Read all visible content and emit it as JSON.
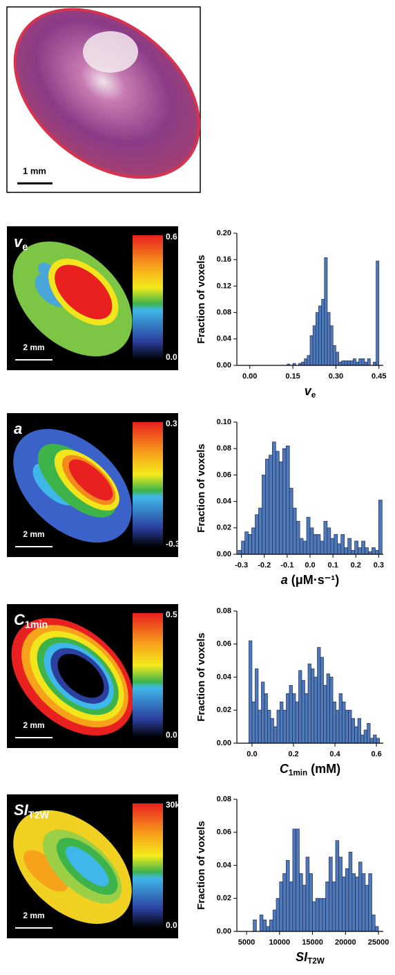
{
  "histology": {
    "scale_bar": "1 mm"
  },
  "maps": [
    {
      "label": {
        "italic": "v",
        "sub": "e"
      },
      "colorbar_max": "0.6",
      "colorbar_min": "0.0",
      "scale_bar": "2 mm"
    },
    {
      "label": {
        "italic": "a"
      },
      "colorbar_max": "0.3",
      "colorbar_min": "-0.3",
      "scale_bar": "2 mm"
    },
    {
      "label": {
        "italic": "C",
        "sub": "1min"
      },
      "colorbar_max": "0.5",
      "colorbar_min": "0.0",
      "scale_bar": "2 mm"
    },
    {
      "label": {
        "italic": "SI",
        "sub": "T2W"
      },
      "colorbar_max": "30k",
      "colorbar_min": "0.0",
      "scale_bar": "2 mm"
    }
  ],
  "chart_data": [
    {
      "type": "histogram",
      "y_label": "Fraction of voxels",
      "x_label": {
        "italic": "v",
        "sub": "e"
      },
      "color": "#4f79b7",
      "xlim": [
        -0.045,
        0.465
      ],
      "ylim": [
        0,
        0.2
      ],
      "xticks": [
        {
          "value": 0,
          "label": "0.00"
        },
        0.15,
        {
          "value": 0.3,
          "label": "0.30"
        },
        0.45
      ],
      "yticks": [
        {
          "value": 0,
          "label": "0.00"
        },
        0.04,
        0.08,
        0.12,
        0.16,
        {
          "value": 0.2,
          "label": "0.20"
        }
      ],
      "bins": [
        0.13,
        0.14,
        0.15,
        0.16,
        0.17,
        0.18,
        0.19,
        0.2,
        0.21,
        0.22,
        0.23,
        0.24,
        0.25,
        0.26,
        0.27,
        0.28,
        0.29,
        0.3,
        0.31,
        0.32,
        0.33,
        0.34,
        0.35,
        0.36,
        0.37,
        0.38,
        0.39,
        0.4,
        0.41,
        0.42,
        0.43,
        0.44,
        0.45
      ],
      "values": [
        0.002,
        0,
        0.003,
        0,
        0.003,
        0.005,
        0.01,
        0.015,
        0.045,
        0.06,
        0.08,
        0.09,
        0.1,
        0.163,
        0.08,
        0.06,
        0.03,
        0.02,
        0.005,
        0.007,
        0.007,
        0.007,
        0.007,
        0.01,
        0.005,
        0.01,
        0.01,
        0.005,
        0.01,
        0,
        0.005,
        0.158
      ]
    },
    {
      "type": "histogram",
      "y_label": "Fraction of voxels",
      "x_label": {
        "italic": "a",
        "tail": " (μM·s⁻¹)"
      },
      "color": "#4f79b7",
      "xlim": [
        -0.32,
        0.32
      ],
      "ylim": [
        0,
        0.1
      ],
      "xticks": [
        -0.3,
        -0.2,
        -0.1,
        {
          "value": 0,
          "label": "0.0"
        },
        0.1,
        0.2,
        0.3
      ],
      "yticks": [
        {
          "value": 0,
          "label": "0.00"
        },
        0.02,
        0.04,
        0.06,
        0.08,
        {
          "value": 0.1,
          "label": "0.10"
        }
      ],
      "bins": [
        -0.315,
        -0.3,
        -0.285,
        -0.27,
        -0.255,
        -0.24,
        -0.225,
        -0.21,
        -0.195,
        -0.18,
        -0.165,
        -0.15,
        -0.135,
        -0.12,
        -0.105,
        -0.09,
        -0.075,
        -0.06,
        -0.045,
        -0.03,
        -0.015,
        0,
        0.015,
        0.03,
        0.045,
        0.06,
        0.075,
        0.09,
        0.105,
        0.12,
        0.135,
        0.15,
        0.165,
        0.18,
        0.195,
        0.21,
        0.225,
        0.24,
        0.255,
        0.27,
        0.285,
        0.3,
        0.315
      ],
      "values": [
        0.003,
        0.01,
        0.017,
        0.015,
        0.02,
        0.03,
        0.035,
        0.06,
        0.072,
        0.075,
        0.085,
        0.078,
        0.07,
        0.08,
        0.082,
        0.05,
        0.035,
        0.025,
        0.012,
        0.01,
        0.028,
        0.02,
        0.015,
        0.015,
        0.01,
        0.025,
        0.02,
        0.012,
        0.015,
        0.008,
        0.015,
        0.005,
        0.012,
        0.003,
        0.01,
        0.005,
        0.01,
        0.005,
        0.002,
        0.005,
        0.003,
        0.041
      ]
    },
    {
      "type": "histogram",
      "y_label": "Fraction of voxels",
      "x_label": {
        "italic": "C",
        "sub": "1min",
        "tail": " (mM)"
      },
      "color": "#4f79b7",
      "xlim": [
        -0.073,
        0.633
      ],
      "ylim": [
        0,
        0.08
      ],
      "xticks": [
        {
          "value": 0,
          "label": "0.0"
        },
        0.2,
        0.4,
        0.6
      ],
      "yticks": [
        {
          "value": 0,
          "label": "0.00"
        },
        0.02,
        0.04,
        0.06,
        0.08
      ],
      "bins": [
        -0.015,
        0,
        0.015,
        0.03,
        0.045,
        0.06,
        0.075,
        0.09,
        0.105,
        0.12,
        0.135,
        0.15,
        0.165,
        0.18,
        0.195,
        0.21,
        0.225,
        0.24,
        0.255,
        0.27,
        0.285,
        0.3,
        0.315,
        0.33,
        0.345,
        0.36,
        0.375,
        0.39,
        0.405,
        0.42,
        0.435,
        0.45,
        0.465,
        0.48,
        0.495,
        0.51,
        0.525,
        0.54,
        0.555,
        0.57,
        0.585,
        0.6,
        0.615
      ],
      "values": [
        0.062,
        0.025,
        0.045,
        0.02,
        0.037,
        0.03,
        0.02,
        0.015,
        0.01,
        0.02,
        0.025,
        0.02,
        0.03,
        0.035,
        0.03,
        0.025,
        0.044,
        0.038,
        0.03,
        0.048,
        0.045,
        0.04,
        0.058,
        0.052,
        0.035,
        0.042,
        0.04,
        0.025,
        0.02,
        0.03,
        0.025,
        0.02,
        0.02,
        0.015,
        0.01,
        0.015,
        0.005,
        0.008,
        0.012,
        0.003,
        0.005,
        0.003
      ]
    },
    {
      "type": "histogram",
      "y_label": "Fraction of voxels",
      "x_label": {
        "italic": "SI",
        "sub": "T2W"
      },
      "color": "#4f79b7",
      "xlim": [
        3530,
        25730
      ],
      "ylim": [
        0,
        0.08
      ],
      "xticks": [
        5000,
        10000,
        15000,
        20000,
        25000
      ],
      "yticks": [
        {
          "value": 0,
          "label": "0.00"
        },
        0.02,
        0.04,
        0.06,
        0.08
      ],
      "bins": [
        6000,
        6500,
        7000,
        7500,
        8000,
        8500,
        9000,
        9500,
        10000,
        10500,
        11000,
        11500,
        12000,
        12500,
        13000,
        13500,
        14000,
        14500,
        15000,
        15500,
        16000,
        16500,
        17000,
        17500,
        18000,
        18500,
        19000,
        19500,
        20000,
        20500,
        21000,
        21500,
        22000,
        22500,
        23000,
        23500,
        24000,
        24500,
        25000
      ],
      "values": [
        0.007,
        0,
        0.01,
        0.007,
        0.003,
        0.007,
        0.013,
        0.02,
        0.03,
        0.035,
        0.043,
        0.03,
        0.062,
        0.062,
        0.035,
        0.028,
        0.045,
        0.035,
        0.018,
        0.02,
        0.02,
        0.02,
        0.03,
        0.045,
        0.03,
        0.055,
        0.045,
        0.033,
        0.038,
        0.048,
        0.035,
        0.033,
        0.042,
        0.035,
        0.028,
        0.035,
        0.01,
        0.003
      ]
    }
  ]
}
